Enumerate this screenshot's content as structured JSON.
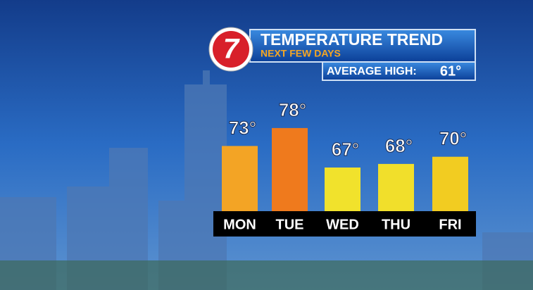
{
  "logo": "7",
  "chart_data": {
    "type": "bar",
    "title": "TEMPERATURE TREND",
    "subtitle": "NEXT FEW DAYS",
    "annotation": {
      "label": "AVERAGE HIGH:",
      "value": "61°"
    },
    "categories": [
      "MON",
      "TUE",
      "WED",
      "THU",
      "FRI"
    ],
    "values": [
      73,
      78,
      67,
      68,
      70
    ],
    "value_labels": [
      "73°",
      "78°",
      "67°",
      "68°",
      "70°"
    ],
    "colors": [
      "#f3a425",
      "#ef7a1d",
      "#f1e22c",
      "#f1df2b",
      "#f2cc21"
    ]
  }
}
